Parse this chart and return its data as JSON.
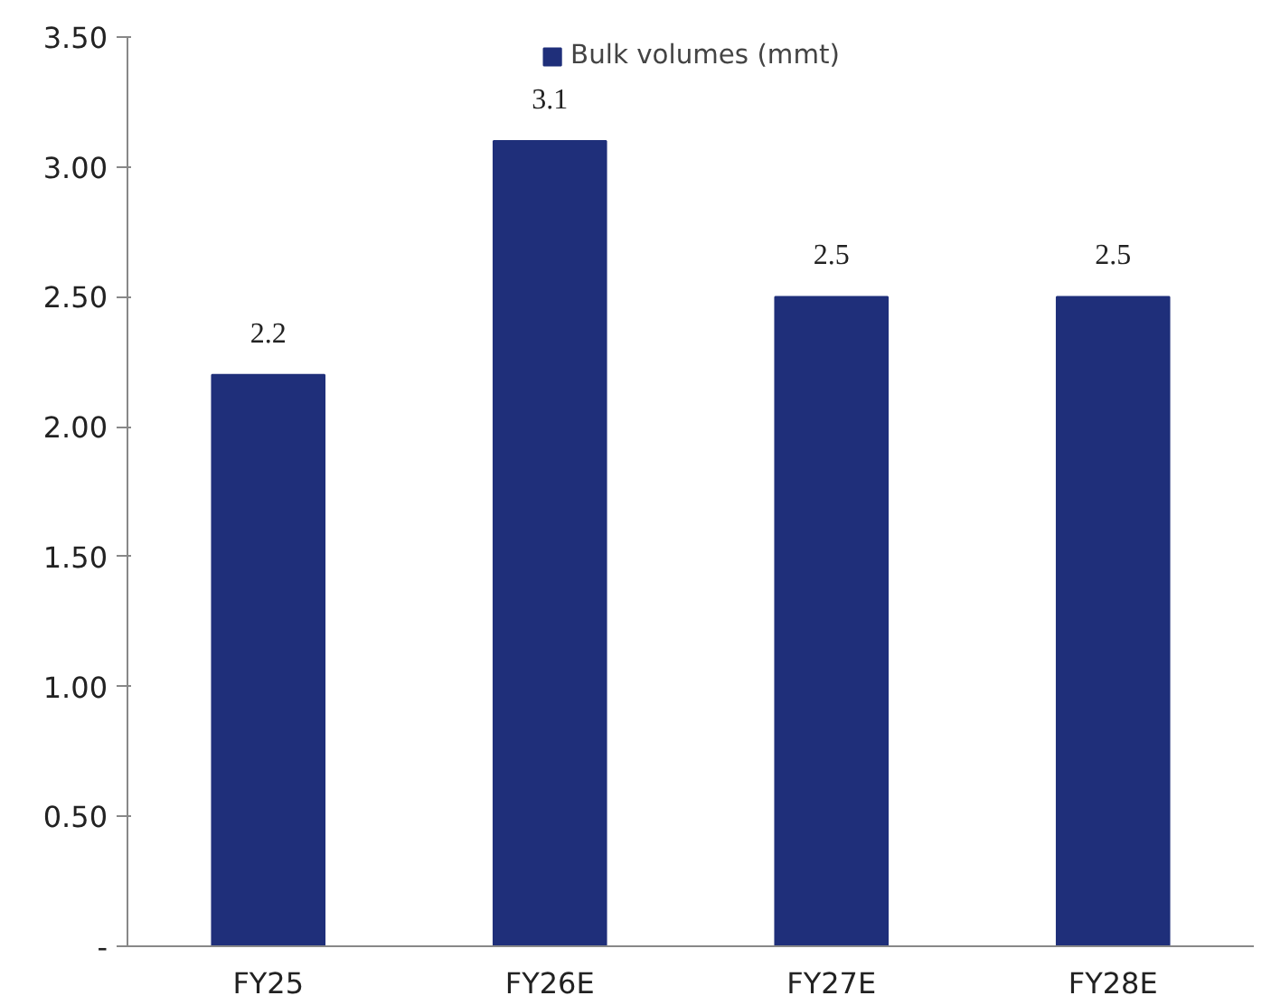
{
  "chart_data": {
    "type": "bar",
    "categories": [
      "FY25",
      "FY26E",
      "FY27E",
      "FY28E"
    ],
    "series": [
      {
        "name": "Bulk volumes (mmt)",
        "color": "#1f2f7a",
        "values": [
          2.2,
          3.1,
          2.5,
          2.5
        ]
      }
    ],
    "ylim": [
      0,
      3.5
    ],
    "yticks": [
      {
        "value": 0,
        "label": "-"
      },
      {
        "value": 0.5,
        "label": "0.50"
      },
      {
        "value": 1,
        "label": "1.00"
      },
      {
        "value": 1.5,
        "label": "1.50"
      },
      {
        "value": 2,
        "label": "2.00"
      },
      {
        "value": 2.5,
        "label": "2.50"
      },
      {
        "value": 3,
        "label": "3.00"
      },
      {
        "value": 3.5,
        "label": "3.50"
      }
    ],
    "data_labels": true,
    "legend": "top",
    "grid": false
  }
}
